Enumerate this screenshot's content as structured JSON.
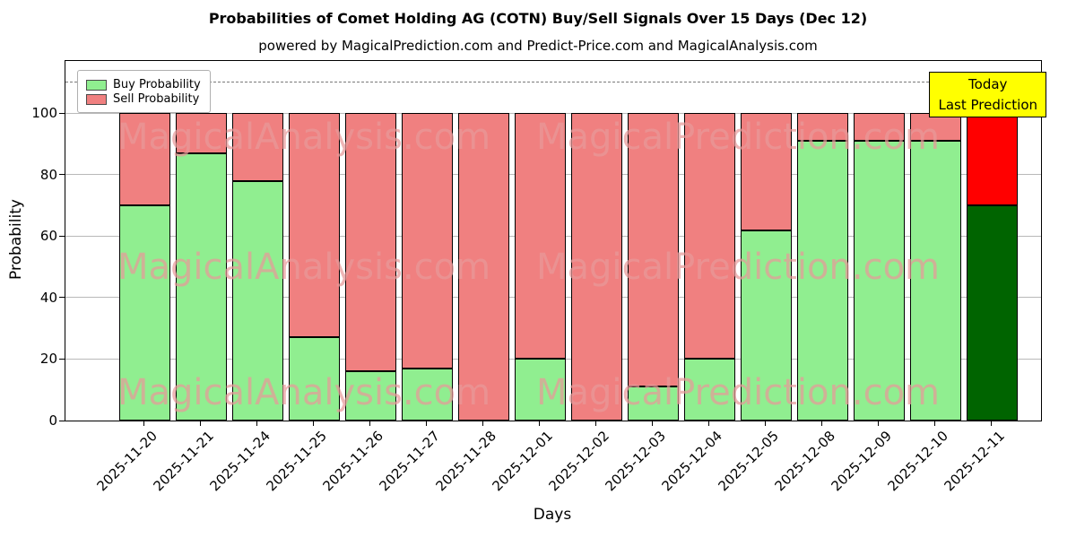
{
  "title": "Probabilities of Comet Holding AG (COTN) Buy/Sell Signals Over 15 Days (Dec 12)",
  "subtitle": "powered by MagicalPrediction.com and Predict-Price.com and MagicalAnalysis.com",
  "annotation": {
    "line1": "Today",
    "line2": "Last Prediction",
    "bg_color": "#ffff00"
  },
  "watermarks": {
    "left": "MagicalAnalysis.com",
    "right": "MagicalPrediction.com"
  },
  "chart_data": {
    "type": "bar",
    "stacked": true,
    "title": "Probabilities of Comet Holding AG (COTN) Buy/Sell Signals Over 15 Days (Dec 12)",
    "xlabel": "Days",
    "ylabel": "Probability",
    "categories": [
      "2025-11-20",
      "2025-11-21",
      "2025-11-24",
      "2025-11-25",
      "2025-11-26",
      "2025-11-27",
      "2025-11-28",
      "2025-12-01",
      "2025-12-02",
      "2025-12-03",
      "2025-12-04",
      "2025-12-05",
      "2025-12-08",
      "2025-12-09",
      "2025-12-10",
      "2025-12-11"
    ],
    "series": [
      {
        "name": "Buy Probability",
        "color": "#90ee90",
        "final_bar_color": "#006400",
        "values": [
          70,
          87,
          78,
          27,
          16,
          17,
          0,
          20,
          0,
          11,
          20,
          62,
          91,
          91,
          91,
          70
        ]
      },
      {
        "name": "Sell Probability",
        "color": "#f08080",
        "final_bar_color": "#ff0000",
        "values": [
          30,
          13,
          22,
          73,
          84,
          83,
          100,
          80,
          100,
          89,
          80,
          38,
          9,
          9,
          9,
          30
        ]
      }
    ],
    "yticks": [
      0,
      20,
      40,
      60,
      80,
      100
    ],
    "ylim": [
      0,
      117
    ],
    "dashed_line_y": 110,
    "grid": true,
    "legend_position": "upper-left",
    "bar_edge_color": "#000000"
  }
}
